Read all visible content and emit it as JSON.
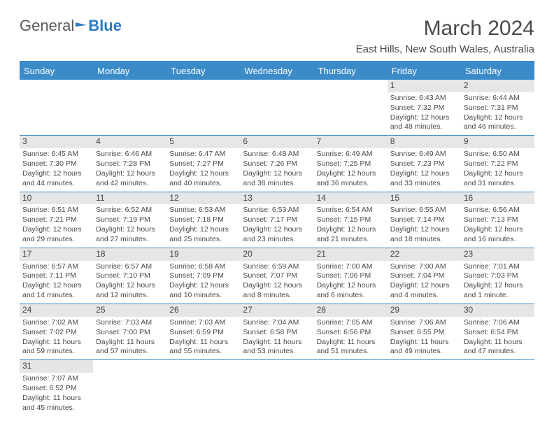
{
  "logo": {
    "part1": "General",
    "part2": "Blue"
  },
  "title": "March 2024",
  "location": "East Hills, New South Wales, Australia",
  "weekdays": [
    "Sunday",
    "Monday",
    "Tuesday",
    "Wednesday",
    "Thursday",
    "Friday",
    "Saturday"
  ],
  "colors": {
    "header_bg": "#3b8bc9",
    "header_text": "#ffffff",
    "daynum_bg": "#e6e6e6",
    "border": "#3b8bc9",
    "text": "#4a4a4a"
  },
  "weeks": [
    [
      null,
      null,
      null,
      null,
      null,
      {
        "n": "1",
        "sr": "Sunrise: 6:43 AM",
        "ss": "Sunset: 7:32 PM",
        "dl": "Daylight: 12 hours and 48 minutes."
      },
      {
        "n": "2",
        "sr": "Sunrise: 6:44 AM",
        "ss": "Sunset: 7:31 PM",
        "dl": "Daylight: 12 hours and 46 minutes."
      }
    ],
    [
      {
        "n": "3",
        "sr": "Sunrise: 6:45 AM",
        "ss": "Sunset: 7:30 PM",
        "dl": "Daylight: 12 hours and 44 minutes."
      },
      {
        "n": "4",
        "sr": "Sunrise: 6:46 AM",
        "ss": "Sunset: 7:28 PM",
        "dl": "Daylight: 12 hours and 42 minutes."
      },
      {
        "n": "5",
        "sr": "Sunrise: 6:47 AM",
        "ss": "Sunset: 7:27 PM",
        "dl": "Daylight: 12 hours and 40 minutes."
      },
      {
        "n": "6",
        "sr": "Sunrise: 6:48 AM",
        "ss": "Sunset: 7:26 PM",
        "dl": "Daylight: 12 hours and 38 minutes."
      },
      {
        "n": "7",
        "sr": "Sunrise: 6:49 AM",
        "ss": "Sunset: 7:25 PM",
        "dl": "Daylight: 12 hours and 36 minutes."
      },
      {
        "n": "8",
        "sr": "Sunrise: 6:49 AM",
        "ss": "Sunset: 7:23 PM",
        "dl": "Daylight: 12 hours and 33 minutes."
      },
      {
        "n": "9",
        "sr": "Sunrise: 6:50 AM",
        "ss": "Sunset: 7:22 PM",
        "dl": "Daylight: 12 hours and 31 minutes."
      }
    ],
    [
      {
        "n": "10",
        "sr": "Sunrise: 6:51 AM",
        "ss": "Sunset: 7:21 PM",
        "dl": "Daylight: 12 hours and 29 minutes."
      },
      {
        "n": "11",
        "sr": "Sunrise: 6:52 AM",
        "ss": "Sunset: 7:19 PM",
        "dl": "Daylight: 12 hours and 27 minutes."
      },
      {
        "n": "12",
        "sr": "Sunrise: 6:53 AM",
        "ss": "Sunset: 7:18 PM",
        "dl": "Daylight: 12 hours and 25 minutes."
      },
      {
        "n": "13",
        "sr": "Sunrise: 6:53 AM",
        "ss": "Sunset: 7:17 PM",
        "dl": "Daylight: 12 hours and 23 minutes."
      },
      {
        "n": "14",
        "sr": "Sunrise: 6:54 AM",
        "ss": "Sunset: 7:15 PM",
        "dl": "Daylight: 12 hours and 21 minutes."
      },
      {
        "n": "15",
        "sr": "Sunrise: 6:55 AM",
        "ss": "Sunset: 7:14 PM",
        "dl": "Daylight: 12 hours and 18 minutes."
      },
      {
        "n": "16",
        "sr": "Sunrise: 6:56 AM",
        "ss": "Sunset: 7:13 PM",
        "dl": "Daylight: 12 hours and 16 minutes."
      }
    ],
    [
      {
        "n": "17",
        "sr": "Sunrise: 6:57 AM",
        "ss": "Sunset: 7:11 PM",
        "dl": "Daylight: 12 hours and 14 minutes."
      },
      {
        "n": "18",
        "sr": "Sunrise: 6:57 AM",
        "ss": "Sunset: 7:10 PM",
        "dl": "Daylight: 12 hours and 12 minutes."
      },
      {
        "n": "19",
        "sr": "Sunrise: 6:58 AM",
        "ss": "Sunset: 7:09 PM",
        "dl": "Daylight: 12 hours and 10 minutes."
      },
      {
        "n": "20",
        "sr": "Sunrise: 6:59 AM",
        "ss": "Sunset: 7:07 PM",
        "dl": "Daylight: 12 hours and 8 minutes."
      },
      {
        "n": "21",
        "sr": "Sunrise: 7:00 AM",
        "ss": "Sunset: 7:06 PM",
        "dl": "Daylight: 12 hours and 6 minutes."
      },
      {
        "n": "22",
        "sr": "Sunrise: 7:00 AM",
        "ss": "Sunset: 7:04 PM",
        "dl": "Daylight: 12 hours and 4 minutes."
      },
      {
        "n": "23",
        "sr": "Sunrise: 7:01 AM",
        "ss": "Sunset: 7:03 PM",
        "dl": "Daylight: 12 hours and 1 minute."
      }
    ],
    [
      {
        "n": "24",
        "sr": "Sunrise: 7:02 AM",
        "ss": "Sunset: 7:02 PM",
        "dl": "Daylight: 11 hours and 59 minutes."
      },
      {
        "n": "25",
        "sr": "Sunrise: 7:03 AM",
        "ss": "Sunset: 7:00 PM",
        "dl": "Daylight: 11 hours and 57 minutes."
      },
      {
        "n": "26",
        "sr": "Sunrise: 7:03 AM",
        "ss": "Sunset: 6:59 PM",
        "dl": "Daylight: 11 hours and 55 minutes."
      },
      {
        "n": "27",
        "sr": "Sunrise: 7:04 AM",
        "ss": "Sunset: 6:58 PM",
        "dl": "Daylight: 11 hours and 53 minutes."
      },
      {
        "n": "28",
        "sr": "Sunrise: 7:05 AM",
        "ss": "Sunset: 6:56 PM",
        "dl": "Daylight: 11 hours and 51 minutes."
      },
      {
        "n": "29",
        "sr": "Sunrise: 7:06 AM",
        "ss": "Sunset: 6:55 PM",
        "dl": "Daylight: 11 hours and 49 minutes."
      },
      {
        "n": "30",
        "sr": "Sunrise: 7:06 AM",
        "ss": "Sunset: 6:54 PM",
        "dl": "Daylight: 11 hours and 47 minutes."
      }
    ],
    [
      {
        "n": "31",
        "sr": "Sunrise: 7:07 AM",
        "ss": "Sunset: 6:52 PM",
        "dl": "Daylight: 11 hours and 45 minutes."
      },
      null,
      null,
      null,
      null,
      null,
      null
    ]
  ]
}
